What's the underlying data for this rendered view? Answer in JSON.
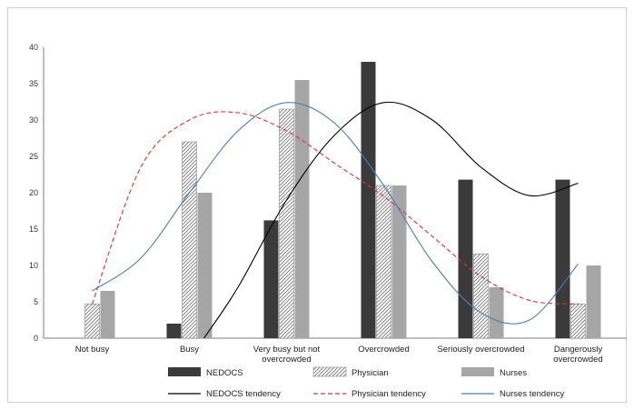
{
  "chart_data": {
    "type": "bar",
    "categories": [
      [
        "Not busy"
      ],
      [
        "Busy"
      ],
      [
        "Very busy but not",
        "overcrowded"
      ],
      [
        "Overcrowded"
      ],
      [
        "Seriously overcrowded"
      ],
      [
        "Dangerously",
        "overcrowded"
      ]
    ],
    "series": [
      {
        "name": "NEDOCS",
        "values": [
          0,
          2,
          16.2,
          38,
          21.8,
          21.8
        ],
        "color": "#3a3a3a",
        "pattern": "solid"
      },
      {
        "name": "Physician",
        "values": [
          4.7,
          27,
          31.5,
          21,
          11.6,
          4.7
        ],
        "color": "#d0d0d0",
        "pattern": "hatch"
      },
      {
        "name": "Nurses",
        "values": [
          6.5,
          20,
          35.5,
          21,
          7,
          10
        ],
        "color": "#a6a6a6",
        "pattern": "solid"
      }
    ],
    "trendlines": [
      {
        "name": "NEDOCS tendency",
        "color": "#000000",
        "dash": "none",
        "points": [
          [
            1.15,
            0
          ],
          [
            1.5,
            7
          ],
          [
            2,
            19
          ],
          [
            2.5,
            28
          ],
          [
            3,
            32.4
          ],
          [
            3.5,
            30
          ],
          [
            4,
            23.5
          ],
          [
            4.5,
            19.6
          ],
          [
            5,
            21.3
          ]
        ]
      },
      {
        "name": "Physician tendency",
        "color": "#e03131",
        "dash": "5,3",
        "points": [
          [
            0,
            4.7
          ],
          [
            0.5,
            23.5
          ],
          [
            1,
            30
          ],
          [
            1.5,
            31
          ],
          [
            2,
            28.5
          ],
          [
            2.5,
            24
          ],
          [
            3,
            19.5
          ],
          [
            3.5,
            14
          ],
          [
            4,
            8.5
          ],
          [
            4.5,
            5.2
          ],
          [
            5,
            4.7
          ]
        ]
      },
      {
        "name": "Nurses tendency",
        "color": "#4a7ebb",
        "dash": "none",
        "points": [
          [
            0,
            6.5
          ],
          [
            0.5,
            11
          ],
          [
            1,
            20
          ],
          [
            1.5,
            28.5
          ],
          [
            2,
            32.4
          ],
          [
            2.5,
            29.5
          ],
          [
            3,
            21
          ],
          [
            3.5,
            10.5
          ],
          [
            4,
            3.5
          ],
          [
            4.5,
            2.5
          ],
          [
            5,
            10.2
          ]
        ]
      }
    ],
    "yticks": [
      0,
      5,
      10,
      15,
      20,
      25,
      30,
      35,
      40
    ],
    "ylim": [
      0,
      40
    ],
    "grid": false,
    "legend_position": "bottom"
  }
}
